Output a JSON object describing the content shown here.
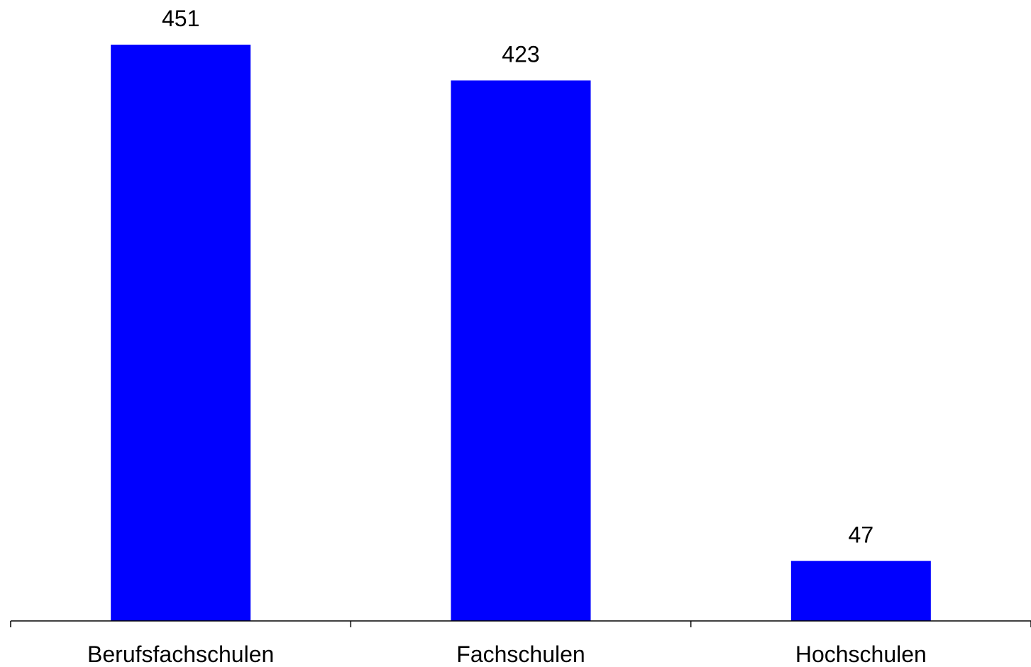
{
  "chart_data": {
    "type": "bar",
    "categories": [
      "Berufsfachschulen",
      "Fachschulen",
      "Hochschulen"
    ],
    "values": [
      451,
      423,
      47
    ],
    "data_labels": [
      "451",
      "423",
      "47"
    ],
    "title": "",
    "xlabel": "",
    "ylabel": "",
    "ylim": [
      0,
      451
    ],
    "grid": false,
    "legend": "none",
    "bar_color": "#0000FF"
  }
}
